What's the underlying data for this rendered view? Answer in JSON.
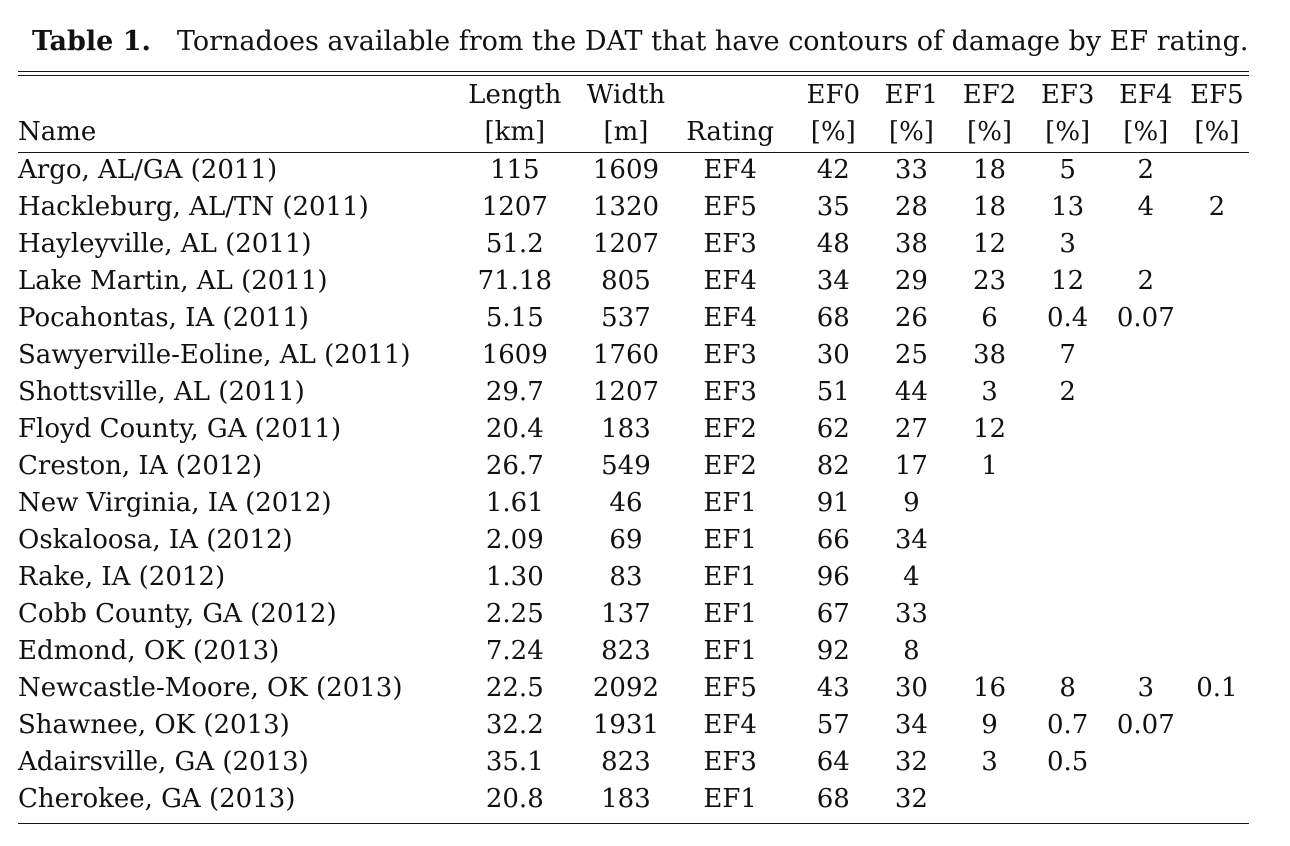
{
  "caption": {
    "label": "Table 1.",
    "text": "Tornadoes available from the DAT that have contours of damage by EF rating."
  },
  "headers": {
    "row1": [
      "",
      "Length",
      "Width",
      "",
      "EF0",
      "EF1",
      "EF2",
      "EF3",
      "EF4",
      "EF5"
    ],
    "row2": [
      "Name",
      "[km]",
      "[m]",
      "Rating",
      "[%]",
      "[%]",
      "[%]",
      "[%]",
      "[%]",
      "[%]"
    ]
  },
  "rows": [
    [
      "Argo, AL/GA (2011)",
      "115",
      "1609",
      "EF4",
      "42",
      "33",
      "18",
      "5",
      "2",
      ""
    ],
    [
      "Hackleburg, AL/TN (2011)",
      "1207",
      "1320",
      "EF5",
      "35",
      "28",
      "18",
      "13",
      "4",
      "2"
    ],
    [
      "Hayleyville, AL (2011)",
      "51.2",
      "1207",
      "EF3",
      "48",
      "38",
      "12",
      "3",
      "",
      ""
    ],
    [
      "Lake Martin, AL (2011)",
      "71.18",
      "805",
      "EF4",
      "34",
      "29",
      "23",
      "12",
      "2",
      ""
    ],
    [
      "Pocahontas, IA (2011)",
      "5.15",
      "537",
      "EF4",
      "68",
      "26",
      "6",
      "0.4",
      "0.07",
      ""
    ],
    [
      "Sawyerville-Eoline, AL (2011)",
      "1609",
      "1760",
      "EF3",
      "30",
      "25",
      "38",
      "7",
      "",
      ""
    ],
    [
      "Shottsville, AL (2011)",
      "29.7",
      "1207",
      "EF3",
      "51",
      "44",
      "3",
      "2",
      "",
      ""
    ],
    [
      "Floyd County, GA (2011)",
      "20.4",
      "183",
      "EF2",
      "62",
      "27",
      "12",
      "",
      "",
      ""
    ],
    [
      "Creston, IA (2012)",
      "26.7",
      "549",
      "EF2",
      "82",
      "17",
      "1",
      "",
      "",
      ""
    ],
    [
      "New Virginia, IA (2012)",
      "1.61",
      "46",
      "EF1",
      "91",
      "9",
      "",
      "",
      "",
      ""
    ],
    [
      "Oskaloosa, IA (2012)",
      "2.09",
      "69",
      "EF1",
      "66",
      "34",
      "",
      "",
      "",
      ""
    ],
    [
      "Rake, IA (2012)",
      "1.30",
      "83",
      "EF1",
      "96",
      "4",
      "",
      "",
      "",
      ""
    ],
    [
      "Cobb County, GA (2012)",
      "2.25",
      "137",
      "EF1",
      "67",
      "33",
      "",
      "",
      "",
      ""
    ],
    [
      "Edmond, OK (2013)",
      "7.24",
      "823",
      "EF1",
      "92",
      "8",
      "",
      "",
      "",
      ""
    ],
    [
      "Newcastle-Moore, OK (2013)",
      "22.5",
      "2092",
      "EF5",
      "43",
      "30",
      "16",
      "8",
      "3",
      "0.1"
    ],
    [
      "Shawnee, OK (2013)",
      "32.2",
      "1931",
      "EF4",
      "57",
      "34",
      "9",
      "0.7",
      "0.07",
      ""
    ],
    [
      "Adairsville, GA (2013)",
      "35.1",
      "823",
      "EF3",
      "64",
      "32",
      "3",
      "0.5",
      "",
      ""
    ],
    [
      "Cherokee, GA (2013)",
      "20.8",
      "183",
      "EF1",
      "68",
      "32",
      "",
      "",
      "",
      ""
    ]
  ]
}
